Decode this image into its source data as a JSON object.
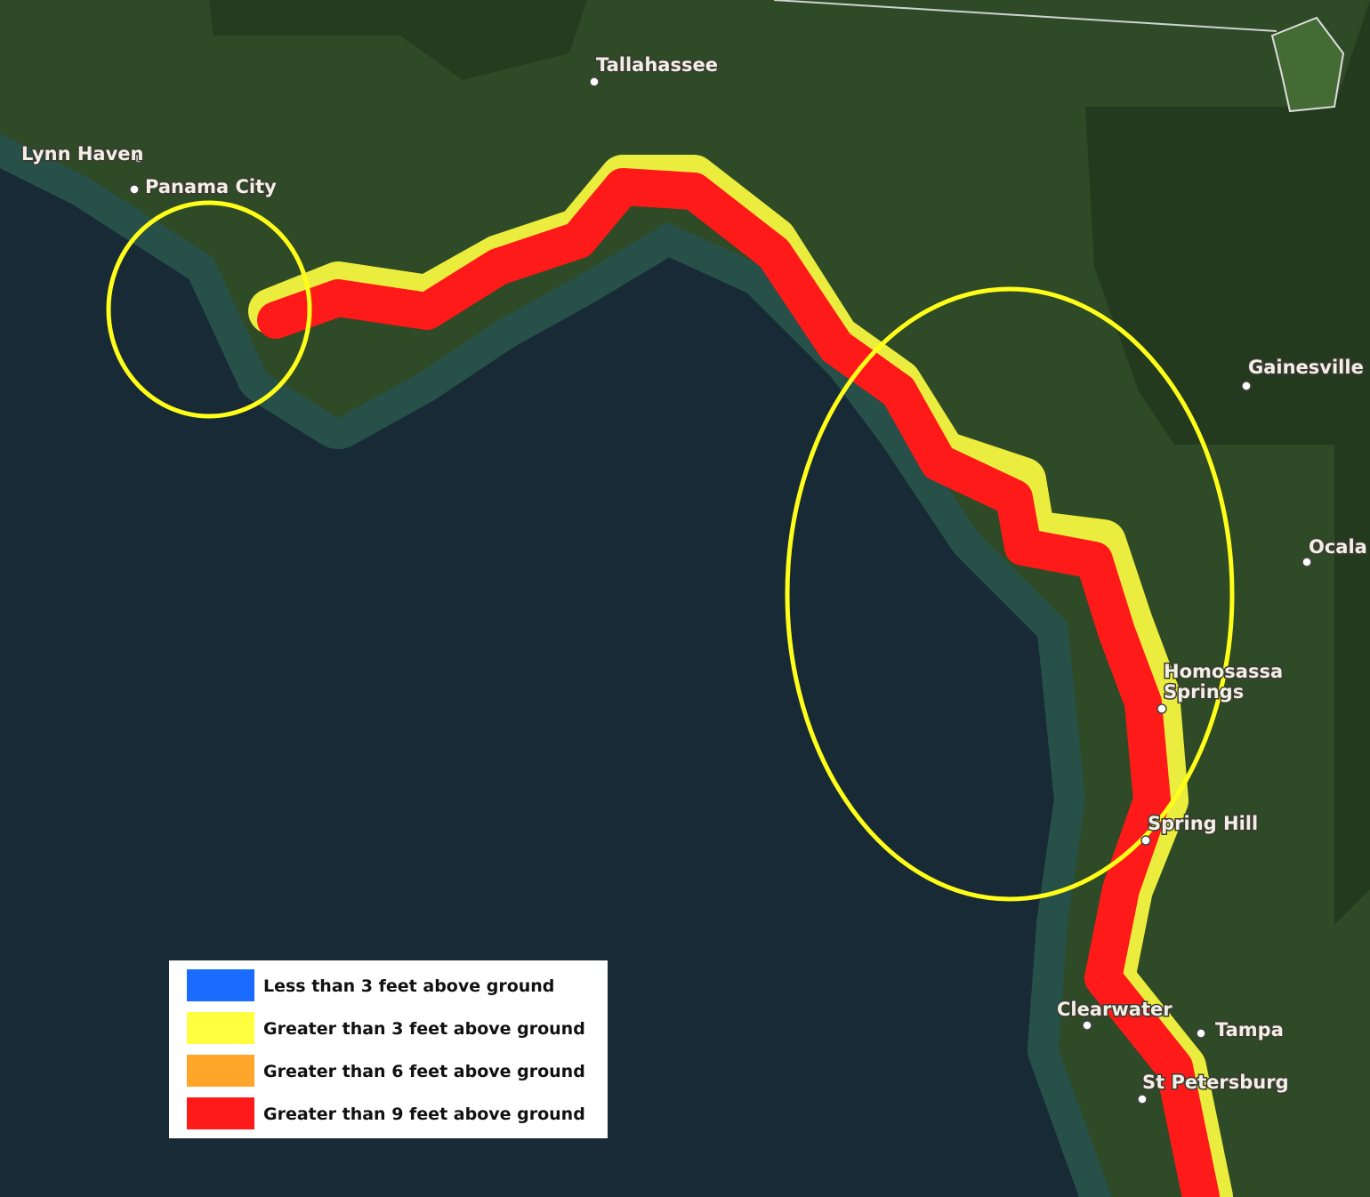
{
  "map": {
    "cities": [
      "Tallahassee",
      "Lynn Haven",
      "Panama City",
      "Gainesville",
      "Ocala",
      "Homosassa Springs",
      "Spring Hill",
      "Clearwater",
      "Tampa",
      "St Petersburg"
    ],
    "legend": [
      {
        "label": "Less than 3 feet above ground",
        "color": "#1a6bff"
      },
      {
        "label": "Greater than 3 feet above ground",
        "color": "#ffff40"
      },
      {
        "label": "Greater than 6 feet above ground",
        "color": "#ffa52a"
      },
      {
        "label": "Greater than 9 feet above ground",
        "color": "#ff1a1a"
      }
    ]
  }
}
